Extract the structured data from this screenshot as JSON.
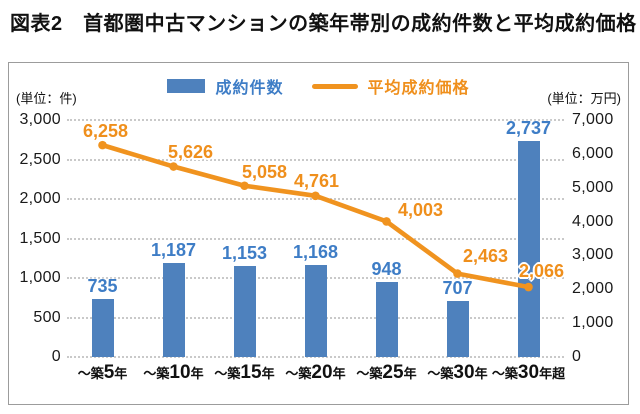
{
  "title": "図表2　首都圏中古マンションの築年帯別の成約件数と平均成約価格",
  "legend": {
    "bar_label": "成約件数",
    "line_label": "平均成約価格"
  },
  "colors": {
    "bar": "#4e81bd",
    "bar_label_text": "#3e7dc6",
    "line": "#f0931f",
    "line_label_text": "#ef8f1c",
    "grid": "#c9c9c9",
    "axis_text": "#1a1a1a"
  },
  "chart_data": {
    "type": "bar+line combo",
    "title": "図表2　首都圏中古マンションの築年帯別の成約件数と平均成約価格",
    "grid": "horizontal dotted, follows left axis steps of 500",
    "legend_position": "top-center",
    "categories": [
      {
        "prefix": "～築",
        "num": "5",
        "suffix": "年",
        "label": "～築5年"
      },
      {
        "prefix": "～築",
        "num": "10",
        "suffix": "年",
        "label": "～築10年"
      },
      {
        "prefix": "～築",
        "num": "15",
        "suffix": "年",
        "label": "～築15年"
      },
      {
        "prefix": "～築",
        "num": "20",
        "suffix": "年",
        "label": "～築20年"
      },
      {
        "prefix": "～築",
        "num": "25",
        "suffix": "年",
        "label": "～築25年"
      },
      {
        "prefix": "～築",
        "num": "30",
        "suffix": "年",
        "label": "～築30年"
      },
      {
        "prefix": "～築",
        "num": "30",
        "suffix": "年超",
        "label": "～築30年超"
      }
    ],
    "series": [
      {
        "name": "成約件数",
        "type": "bar",
        "axis": "left",
        "values": [
          735,
          1187,
          1153,
          1168,
          948,
          707,
          2737
        ],
        "labels": [
          "735",
          "1,187",
          "1,153",
          "1,168",
          "948",
          "707",
          "2,737"
        ]
      },
      {
        "name": "平均成約価格",
        "type": "line",
        "axis": "right",
        "values": [
          6258,
          5626,
          5058,
          4761,
          4003,
          2463,
          2066
        ],
        "labels": [
          "6,258",
          "5,626",
          "5,058",
          "4,761",
          "4,003",
          "2,463",
          "2,066"
        ]
      }
    ],
    "left_axis": {
      "unit": "(単位：件)",
      "min": 0,
      "max": 3000,
      "step": 500,
      "ticks": [
        "3,000",
        "2,500",
        "2,000",
        "1,500",
        "1,000",
        "500",
        "0"
      ]
    },
    "right_axis": {
      "unit": "(単位：万円)",
      "min": 0,
      "max": 7000,
      "step": 1000,
      "ticks": [
        "7,000",
        "6,000",
        "5,000",
        "4,000",
        "3,000",
        "2,000",
        "1,000",
        "0"
      ]
    }
  }
}
